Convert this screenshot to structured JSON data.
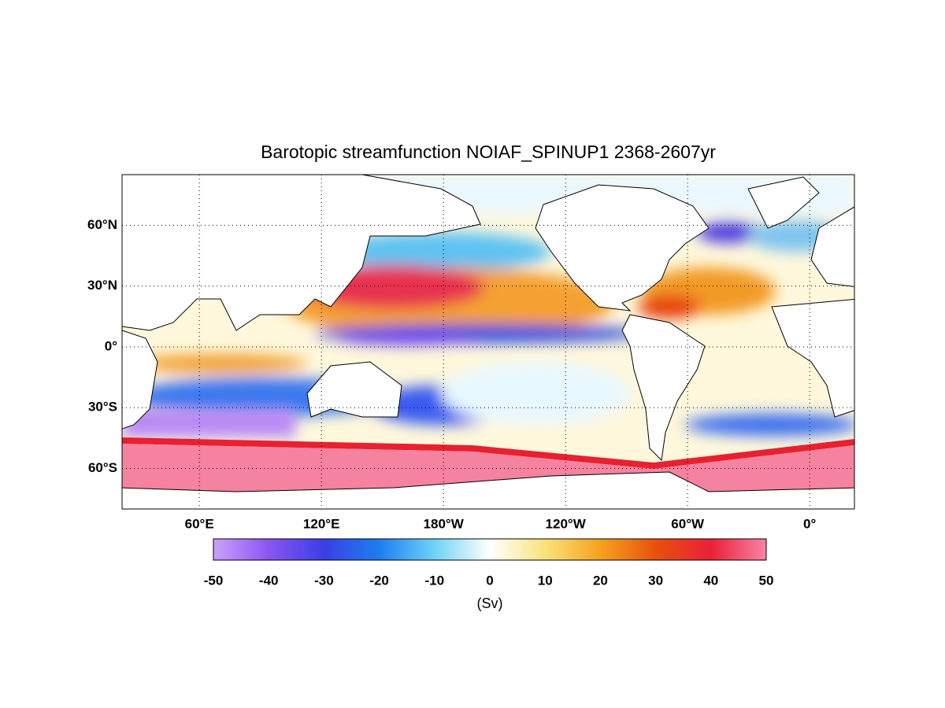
{
  "title": "Barotopic streamfunction NOIAF_SPINUP1 2368-2607yr",
  "map": {
    "lon_range": [
      22,
      382
    ],
    "lat_range": [
      -80,
      85
    ],
    "lon_ticks": [
      {
        "value": 60,
        "label": "60°E"
      },
      {
        "value": 120,
        "label": "120°E"
      },
      {
        "value": 180,
        "label": "180°W"
      },
      {
        "value": 240,
        "label": "120°W"
      },
      {
        "value": 300,
        "label": "60°W"
      },
      {
        "value": 360,
        "label": "0°"
      }
    ],
    "lat_ticks": [
      {
        "value": 60,
        "label": "60°N"
      },
      {
        "value": 30,
        "label": "30°N"
      },
      {
        "value": 0,
        "label": "0°"
      },
      {
        "value": -30,
        "label": "30°S"
      },
      {
        "value": -60,
        "label": "60°S"
      }
    ]
  },
  "colorbar": {
    "range": [
      -50,
      50
    ],
    "ticks": [
      -50,
      -40,
      -30,
      -20,
      -10,
      0,
      10,
      20,
      30,
      40,
      50
    ],
    "label": "(Sv)"
  }
}
